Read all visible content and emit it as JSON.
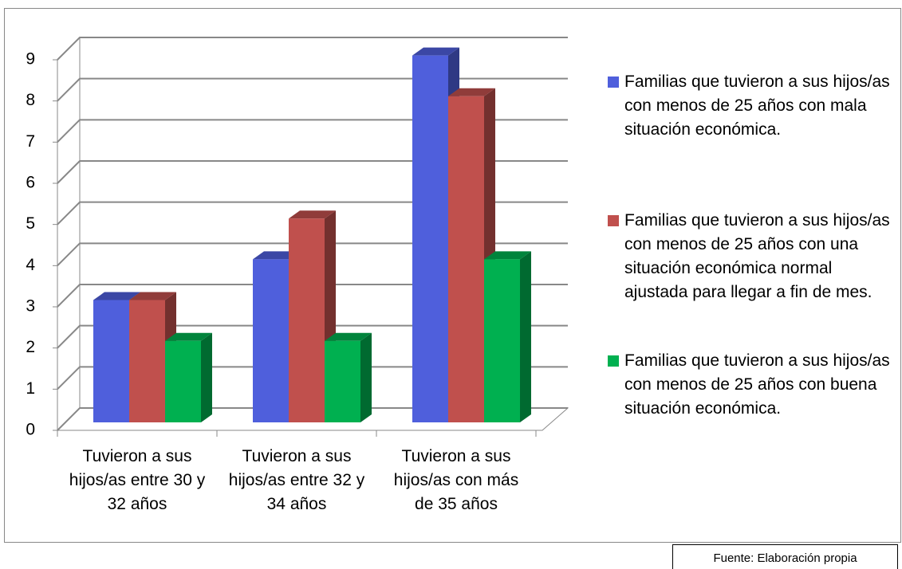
{
  "chart_data": {
    "type": "bar3d",
    "categories": [
      "Tuvieron a sus hijos/as entre 30 y 32 años",
      "Tuvieron a sus hijos/as entre 32 y 34 años",
      "Tuvieron a sus hijos/as con más de 35 años"
    ],
    "series": [
      {
        "name": "Familias que tuvieron a sus hijos/as con menos de 25 años con mala situación económica.",
        "color": "#4f5fdc",
        "values": [
          3,
          4,
          9
        ]
      },
      {
        "name": "Familias que tuvieron a sus hijos/as con menos de 25 años con una situación económica normal ajustada para llegar a fin de mes.",
        "color": "#c0504d",
        "values": [
          3,
          5,
          8
        ]
      },
      {
        "name": "Familias que tuvieron a sus hijos/as con menos de 25 años con buena situación económica.",
        "color": "#00b050",
        "values": [
          2,
          2,
          4
        ]
      }
    ],
    "ylim": [
      0,
      9
    ],
    "yticks": [
      0,
      1,
      2,
      3,
      4,
      5,
      6,
      7,
      8,
      9
    ],
    "grid": true,
    "legend": "right",
    "source": "Fuente: Elaboración propia"
  }
}
